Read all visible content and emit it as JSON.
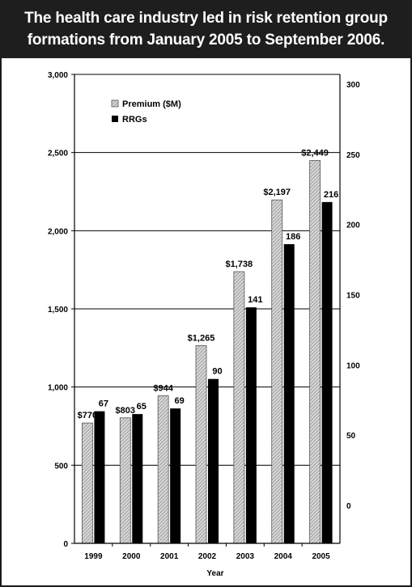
{
  "header": {
    "line1": "The health care industry led in risk retention group",
    "line2": "formations from January 2005 to September 2006."
  },
  "chart_data": {
    "type": "bar",
    "title": "The health care industry led in risk retention group formations from January 2005 to September 2006.",
    "xlabel": "Year",
    "ylabel": "",
    "categories": [
      "1999",
      "2000",
      "2001",
      "2002",
      "2003",
      "2004",
      "2005"
    ],
    "series": [
      {
        "name": "Premium ($M)",
        "axis": "left",
        "values": [
          770,
          803,
          944,
          1265,
          1738,
          2197,
          2449
        ],
        "labels": [
          "$770",
          "$803",
          "$944",
          "$1,265",
          "$1,738",
          "$2,197",
          "$2,449"
        ],
        "fill": "hatched-gray"
      },
      {
        "name": "RRGs",
        "axis": "right",
        "values": [
          67,
          65,
          69,
          90,
          141,
          186,
          216
        ],
        "labels": [
          "67",
          "65",
          "69",
          "90",
          "141",
          "186",
          "216"
        ],
        "fill": "#000000"
      }
    ],
    "left_axis": {
      "ylim": [
        0,
        3000
      ],
      "ticks": [
        0,
        500,
        1000,
        1500,
        2000,
        2500,
        3000
      ],
      "tick_labels": [
        "0",
        "500",
        "1,000",
        "1,500",
        "2,000",
        "2,500",
        "3,000"
      ]
    },
    "right_axis": {
      "ticks": [
        0,
        50,
        100,
        150,
        200,
        250,
        300
      ],
      "tick_labels": [
        "0",
        "50",
        "100",
        "150",
        "200",
        "250",
        "300"
      ]
    },
    "grid": true,
    "legend": "top-left"
  }
}
